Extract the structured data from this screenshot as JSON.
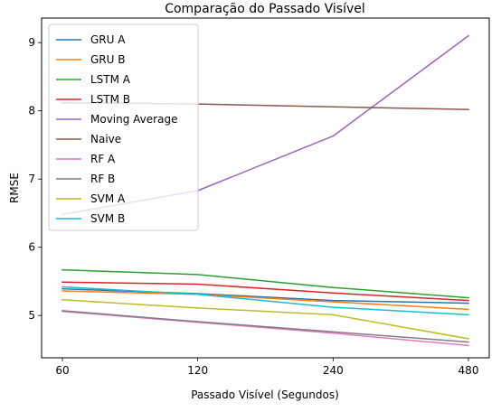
{
  "chart_data": {
    "type": "line",
    "title": "Comparação do Passado Visível",
    "xlabel": "Passado Visível (Segundos)",
    "ylabel": "RMSE",
    "categories": [
      "60",
      "120",
      "240",
      "480"
    ],
    "ylim": [
      4.38,
      9.36
    ],
    "yticks": [
      "5",
      "6",
      "7",
      "8",
      "9"
    ],
    "grid": false,
    "legend_position": "upper-left",
    "series": [
      {
        "name": "GRU A",
        "color": "#1f77b4",
        "values": [
          5.39,
          5.32,
          5.22,
          5.18
        ]
      },
      {
        "name": "GRU B",
        "color": "#ff7f0e",
        "values": [
          5.36,
          5.31,
          5.2,
          5.09
        ]
      },
      {
        "name": "LSTM A",
        "color": "#2ca02c",
        "values": [
          5.67,
          5.6,
          5.41,
          5.26
        ]
      },
      {
        "name": "LSTM B",
        "color": "#d62728",
        "values": [
          5.49,
          5.46,
          5.33,
          5.22
        ]
      },
      {
        "name": "Moving Average",
        "color": "#9467bd",
        "values": [
          6.48,
          6.83,
          7.63,
          9.1
        ]
      },
      {
        "name": "Naive",
        "color": "#8c564b",
        "values": [
          8.12,
          8.1,
          8.06,
          8.02
        ]
      },
      {
        "name": "RF A",
        "color": "#e377c2",
        "values": [
          5.06,
          4.9,
          4.74,
          4.56
        ]
      },
      {
        "name": "RF B",
        "color": "#7f7f7f",
        "values": [
          5.07,
          4.91,
          4.76,
          4.61
        ]
      },
      {
        "name": "SVM A",
        "color": "#bcbd22",
        "values": [
          5.23,
          5.11,
          5.01,
          4.66
        ]
      },
      {
        "name": "SVM B",
        "color": "#17becf",
        "values": [
          5.42,
          5.31,
          5.12,
          5.01
        ]
      }
    ]
  }
}
